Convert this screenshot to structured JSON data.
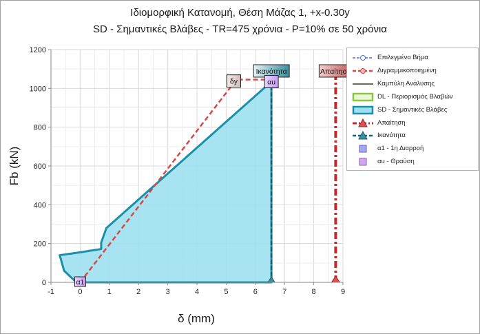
{
  "chart_data": {
    "type": "line",
    "title": "Ιδιομορφική Κατανομή, Θέση Μάζας 1, +x-0.30y",
    "subtitle": "SD - Σημαντικές Βλάβες - TR=475 χρόνια - P=10% σε 50 χρόνια",
    "xlabel": "δ (mm)",
    "ylabel": "Fb (kN)",
    "xlim": [
      -1,
      9
    ],
    "ylim": [
      0,
      1200
    ],
    "x_ticks": [
      "-1",
      "0",
      "1",
      "2",
      "3",
      "4",
      "5",
      "6",
      "7",
      "8",
      "9"
    ],
    "y_ticks": [
      "0",
      "200",
      "400",
      "600",
      "800",
      "1000",
      "1200"
    ],
    "grid": true,
    "legend_position": "right",
    "series": [
      {
        "name": "Επιλεγμένο Βήμα",
        "style": "blue-dashed-circle",
        "color": "#4a6fd8",
        "points": []
      },
      {
        "name": "Διγραμμικοποιημένη",
        "style": "red-dashed",
        "color": "#cd4b4b",
        "points": [
          [
            0.0,
            0
          ],
          [
            5.35,
            1045
          ],
          [
            6.6,
            1045
          ]
        ]
      },
      {
        "name": "Καμπύλη Ανάλυσης",
        "style": "line",
        "color": "#3a3a18",
        "points": []
      },
      {
        "name": "DL - Περιορισμός Βλαβών",
        "style": "area-green",
        "color": "#8cc63f",
        "points": []
      },
      {
        "name": "SD - Σημαντικές Βλάβες",
        "style": "area",
        "color": "#1b8fa8",
        "fill": "#9ee0f0",
        "points": [
          [
            0.0,
            0
          ],
          [
            -0.2,
            10
          ],
          [
            -0.55,
            60
          ],
          [
            -0.7,
            140
          ],
          [
            0.0,
            155
          ],
          [
            0.72,
            172
          ],
          [
            0.72,
            205
          ],
          [
            0.9,
            280
          ],
          [
            6.55,
            1035
          ],
          [
            6.55,
            0
          ]
        ]
      },
      {
        "name": "Απαίτηση",
        "style": "dash-dot-triangle",
        "color": "#c0282d",
        "points": [
          [
            8.75,
            0
          ],
          [
            8.75,
            1060
          ]
        ]
      },
      {
        "name": "Ικανότητα",
        "style": "dashed-triangle",
        "color": "#1c5d6a",
        "points": [
          [
            6.55,
            0
          ],
          [
            6.55,
            1035
          ]
        ]
      },
      {
        "name": "α1 - 1η Διαρροή",
        "style": "marker-square",
        "color": "#8a8ae6",
        "points": []
      },
      {
        "name": "αu - Θραύση",
        "style": "marker-square",
        "color": "#c49ae6",
        "points": [
          [
            6.55,
            1035
          ]
        ]
      }
    ],
    "annotations": [
      {
        "text": "Απαίτηση",
        "x": 8.75,
        "y": 1090
      },
      {
        "text": "Ικανότητα",
        "x": 6.55,
        "y": 1090
      },
      {
        "text": "αu",
        "x": 6.55,
        "y": 1035
      },
      {
        "text": "δy",
        "x": 5.45,
        "y": 1045
      },
      {
        "text": "α1",
        "x": 0.0,
        "y": 0
      }
    ]
  }
}
